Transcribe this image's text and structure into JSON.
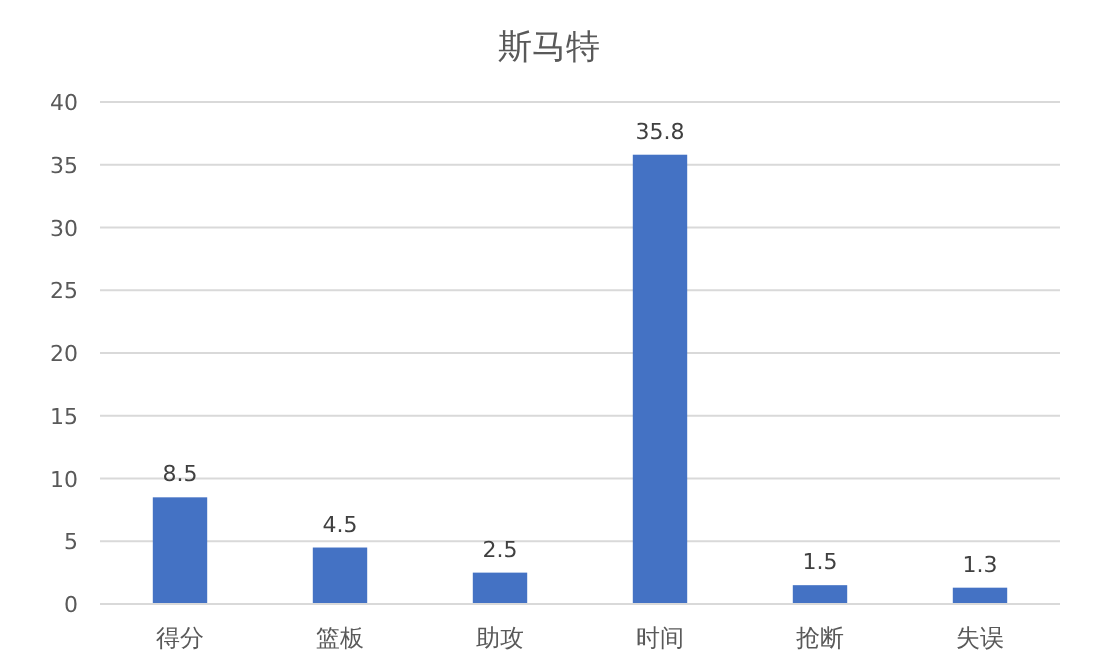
{
  "chart_data": {
    "type": "bar",
    "title": "斯马特",
    "categories": [
      "得分",
      "篮板",
      "助攻",
      "时间",
      "抢断",
      "失误"
    ],
    "values": [
      8.5,
      4.5,
      2.5,
      35.8,
      1.5,
      1.3
    ],
    "color": "#4472c4",
    "ylim": [
      0,
      40
    ],
    "yticks": [
      0,
      5,
      10,
      15,
      20,
      25,
      30,
      35,
      40
    ],
    "grid": "y",
    "data_labels": true
  }
}
